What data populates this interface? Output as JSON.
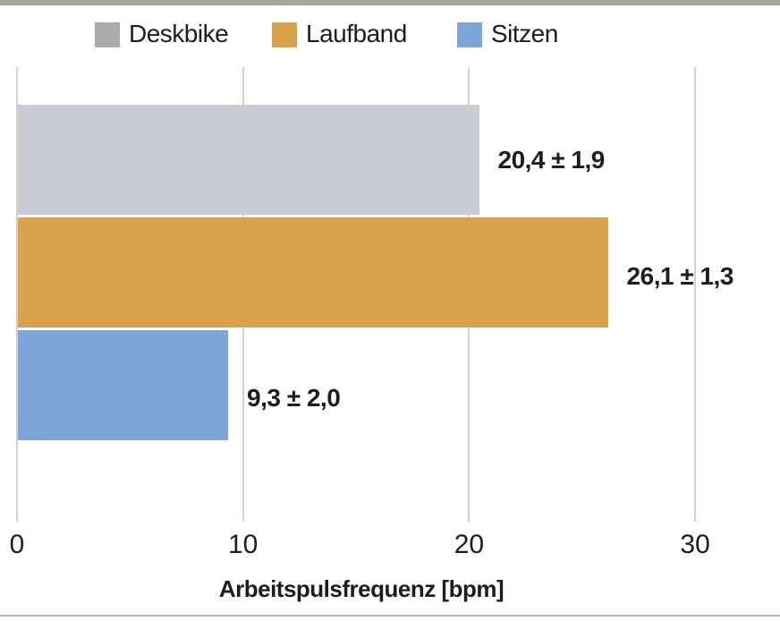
{
  "chart_data": {
    "type": "bar",
    "orientation": "horizontal",
    "title": "",
    "xlabel": "Arbeitspulsfrequenz [bpm]",
    "ylabel": "",
    "categories": [
      "Deskbike",
      "Laufband",
      "Sitzen"
    ],
    "values": [
      20.4,
      26.1,
      9.3
    ],
    "errors": [
      1.9,
      1.3,
      2.0
    ],
    "value_labels": [
      "20,4 ± 1,9",
      "26,1 ± 1,3",
      "9,3 ± 2,0"
    ],
    "bar_colors": [
      "#c9ccd3",
      "#dba24c",
      "#7fa4d8"
    ],
    "xticks": [
      0,
      10,
      20,
      30
    ],
    "xtick_labels": [
      "0",
      "10",
      "20",
      "30"
    ],
    "xlim": [
      0,
      33.7
    ],
    "grid": true,
    "legend_position": "top",
    "legend": [
      {
        "label": "Deskbike",
        "color": "#ababab"
      },
      {
        "label": "Laufband",
        "color": "#dba24c"
      },
      {
        "label": "Sitzen",
        "color": "#7fa4d8"
      }
    ]
  },
  "colors": {
    "top_accent": "#a4a79e",
    "gridline": "#d5d2cb",
    "text": "#1d1d1b",
    "bottom_rule": "#b4b4b4",
    "background": "#ffffff"
  }
}
